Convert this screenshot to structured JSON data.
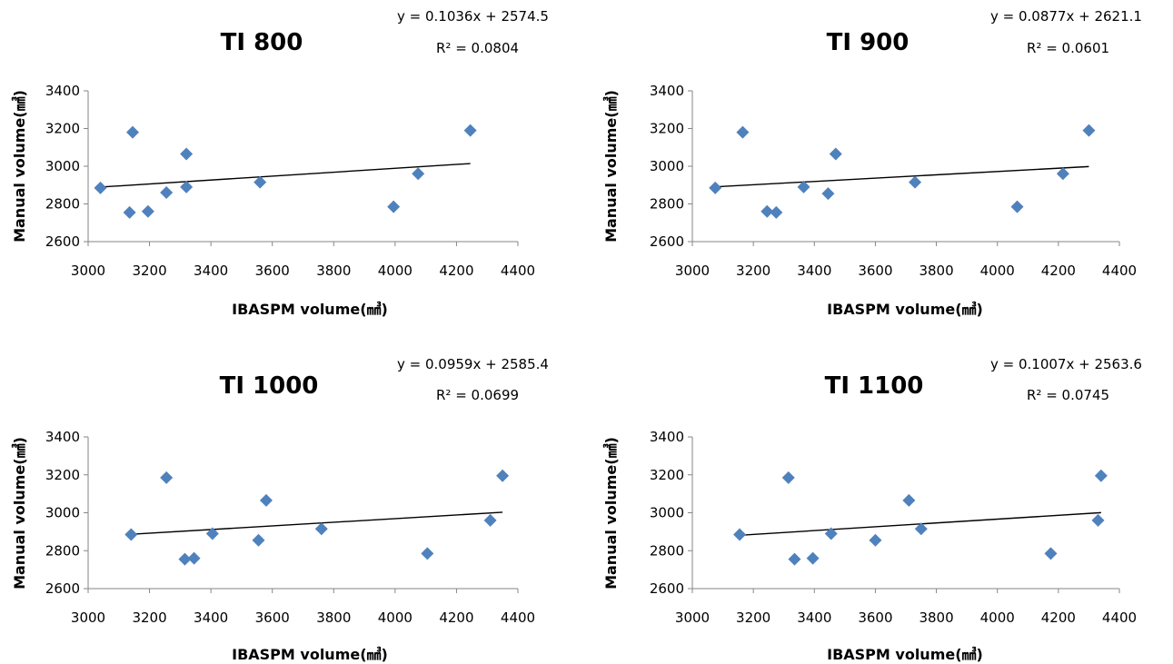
{
  "chart_data": [
    {
      "type": "scatter",
      "title": "TI 800",
      "equation": "y = 0.1036x + 2574.5",
      "r_squared": "R² = 0.0804",
      "xlabel": "IBASPM volume(㎣)",
      "ylabel": "Manual volume(㎣)",
      "xlim": [
        3000,
        4400
      ],
      "ylim": [
        2600,
        3400
      ],
      "x_ticks": [
        "3000",
        "3200",
        "3400",
        "3600",
        "3800",
        "4000",
        "4200",
        "4400"
      ],
      "y_ticks": [
        "2600",
        "2800",
        "3000",
        "3200",
        "3400"
      ],
      "trendline": {
        "slope": 0.1036,
        "intercept": 2574.5,
        "x_range": [
          3040,
          4245
        ]
      },
      "marker_color": "#4f81bd",
      "points": [
        {
          "x": 3040,
          "y": 2885
        },
        {
          "x": 3135,
          "y": 2755
        },
        {
          "x": 3145,
          "y": 3180
        },
        {
          "x": 3195,
          "y": 2760
        },
        {
          "x": 3255,
          "y": 2860
        },
        {
          "x": 3320,
          "y": 3065
        },
        {
          "x": 3320,
          "y": 2890
        },
        {
          "x": 3560,
          "y": 2915
        },
        {
          "x": 3995,
          "y": 2785
        },
        {
          "x": 4075,
          "y": 2960
        },
        {
          "x": 4245,
          "y": 3190
        }
      ]
    },
    {
      "type": "scatter",
      "title": "TI 900",
      "equation": "y = 0.0877x + 2621.1",
      "r_squared": "R² = 0.0601",
      "xlabel": "IBASPM volume(㎣)",
      "ylabel": "Manual volume(㎣)",
      "xlim": [
        3000,
        4400
      ],
      "ylim": [
        2600,
        3400
      ],
      "x_ticks": [
        "3000",
        "3200",
        "3400",
        "3600",
        "3800",
        "4000",
        "4200",
        "4400"
      ],
      "y_ticks": [
        "2600",
        "2800",
        "3000",
        "3200",
        "3400"
      ],
      "trendline": {
        "slope": 0.0877,
        "intercept": 2621.1,
        "x_range": [
          3075,
          4300
        ]
      },
      "marker_color": "#4f81bd",
      "points": [
        {
          "x": 3075,
          "y": 2885
        },
        {
          "x": 3165,
          "y": 3180
        },
        {
          "x": 3245,
          "y": 2760
        },
        {
          "x": 3275,
          "y": 2755
        },
        {
          "x": 3365,
          "y": 2890
        },
        {
          "x": 3445,
          "y": 2855
        },
        {
          "x": 3470,
          "y": 3065
        },
        {
          "x": 3730,
          "y": 2915
        },
        {
          "x": 4065,
          "y": 2785
        },
        {
          "x": 4215,
          "y": 2960
        },
        {
          "x": 4300,
          "y": 3190
        }
      ]
    },
    {
      "type": "scatter",
      "title": "TI 1000",
      "equation": "y = 0.0959x + 2585.4",
      "r_squared": "R² = 0.0699",
      "xlabel": "IBASPM volume(㎣)",
      "ylabel": "Manual volume(㎣)",
      "xlim": [
        3000,
        4400
      ],
      "ylim": [
        2600,
        3400
      ],
      "x_ticks": [
        "3000",
        "3200",
        "3400",
        "3600",
        "3800",
        "4000",
        "4200",
        "4400"
      ],
      "y_ticks": [
        "2600",
        "2800",
        "3000",
        "3200",
        "3400"
      ],
      "trendline": {
        "slope": 0.0959,
        "intercept": 2585.4,
        "x_range": [
          3140,
          4350
        ]
      },
      "marker_color": "#4f81bd",
      "points": [
        {
          "x": 3140,
          "y": 2885
        },
        {
          "x": 3255,
          "y": 3185
        },
        {
          "x": 3315,
          "y": 2755
        },
        {
          "x": 3345,
          "y": 2760
        },
        {
          "x": 3405,
          "y": 2890
        },
        {
          "x": 3555,
          "y": 2855
        },
        {
          "x": 3580,
          "y": 3065
        },
        {
          "x": 3760,
          "y": 2915
        },
        {
          "x": 4105,
          "y": 2785
        },
        {
          "x": 4310,
          "y": 2960
        },
        {
          "x": 4350,
          "y": 3195
        }
      ]
    },
    {
      "type": "scatter",
      "title": "TI 1100",
      "equation": "y = 0.1007x + 2563.6",
      "r_squared": "R² = 0.0745",
      "xlabel": "IBASPM volume(㎣)",
      "ylabel": "Manual volume(㎣)",
      "xlim": [
        3000,
        4400
      ],
      "ylim": [
        2600,
        3400
      ],
      "x_ticks": [
        "3000",
        "3200",
        "3400",
        "3600",
        "3800",
        "4000",
        "4200",
        "4400"
      ],
      "y_ticks": [
        "2600",
        "2800",
        "3000",
        "3200",
        "3400"
      ],
      "trendline": {
        "slope": 0.1007,
        "intercept": 2563.6,
        "x_range": [
          3155,
          4340
        ]
      },
      "marker_color": "#4f81bd",
      "points": [
        {
          "x": 3155,
          "y": 2885
        },
        {
          "x": 3315,
          "y": 3185
        },
        {
          "x": 3335,
          "y": 2755
        },
        {
          "x": 3395,
          "y": 2760
        },
        {
          "x": 3455,
          "y": 2890
        },
        {
          "x": 3600,
          "y": 2855
        },
        {
          "x": 3710,
          "y": 3065
        },
        {
          "x": 3750,
          "y": 2915
        },
        {
          "x": 4175,
          "y": 2785
        },
        {
          "x": 4330,
          "y": 2960
        },
        {
          "x": 4340,
          "y": 3195
        }
      ]
    }
  ]
}
